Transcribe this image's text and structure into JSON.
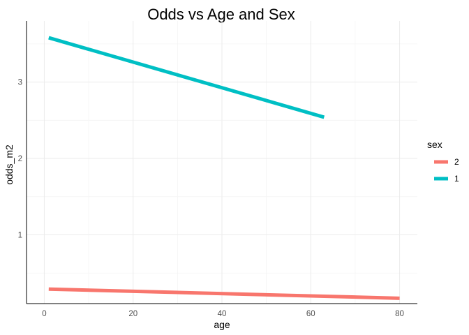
{
  "chart_data": {
    "type": "line",
    "title": "Odds vs Age and Sex",
    "xlabel": "age",
    "ylabel": "odds_m2",
    "xlim": [
      -4,
      84
    ],
    "ylim": [
      0.1,
      3.8
    ],
    "x_ticks": [
      0,
      20,
      40,
      60,
      80
    ],
    "y_ticks": [
      1,
      2,
      3
    ],
    "x_tick_labels": [
      "0",
      "20",
      "40",
      "60",
      "80"
    ],
    "y_tick_labels": [
      "1",
      "2",
      "3"
    ],
    "grid": true,
    "legend": {
      "title": "sex",
      "position": "right",
      "entries": [
        {
          "label": "2",
          "color": "#F8766D"
        },
        {
          "label": "1",
          "color": "#00BFC4"
        }
      ]
    },
    "series": [
      {
        "name": "2",
        "color": "#F8766D",
        "x": [
          1,
          80
        ],
        "y": [
          0.29,
          0.17
        ]
      },
      {
        "name": "1",
        "color": "#00BFC4",
        "x": [
          1,
          63
        ],
        "y": [
          3.58,
          2.54
        ]
      }
    ]
  }
}
